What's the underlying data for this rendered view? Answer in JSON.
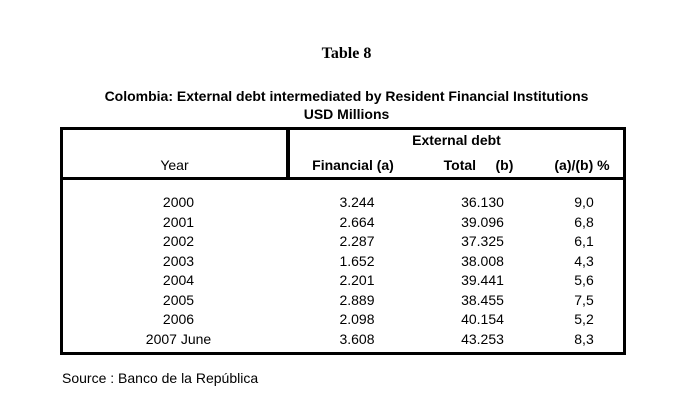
{
  "title": "Table 8",
  "subtitle": {
    "line1": "Colombia: External debt intermediated by Resident Financial Institutions",
    "line2": "USD Millions"
  },
  "table": {
    "group_header": "External debt",
    "columns": {
      "year": "Year",
      "financial": "Financial (a)",
      "total": "Total     (b)",
      "ratio": "(a)/(b) %"
    },
    "rows": [
      {
        "year": "2000",
        "financial": "3.244",
        "total": "36.130",
        "ratio": "9,0"
      },
      {
        "year": "2001",
        "financial": "2.664",
        "total": "39.096",
        "ratio": "6,8"
      },
      {
        "year": "2002",
        "financial": "2.287",
        "total": "37.325",
        "ratio": "6,1"
      },
      {
        "year": "2003",
        "financial": "1.652",
        "total": "38.008",
        "ratio": "4,3"
      },
      {
        "year": "2004",
        "financial": "2.201",
        "total": "39.441",
        "ratio": "5,6"
      },
      {
        "year": "2005",
        "financial": "2.889",
        "total": "38.455",
        "ratio": "7,5"
      },
      {
        "year": "2006",
        "financial": "2.098",
        "total": "40.154",
        "ratio": "5,2"
      },
      {
        "year": "2007 June",
        "financial": "3.608",
        "total": "43.253",
        "ratio": "8,3"
      }
    ]
  },
  "source": "Source : Banco de la República"
}
